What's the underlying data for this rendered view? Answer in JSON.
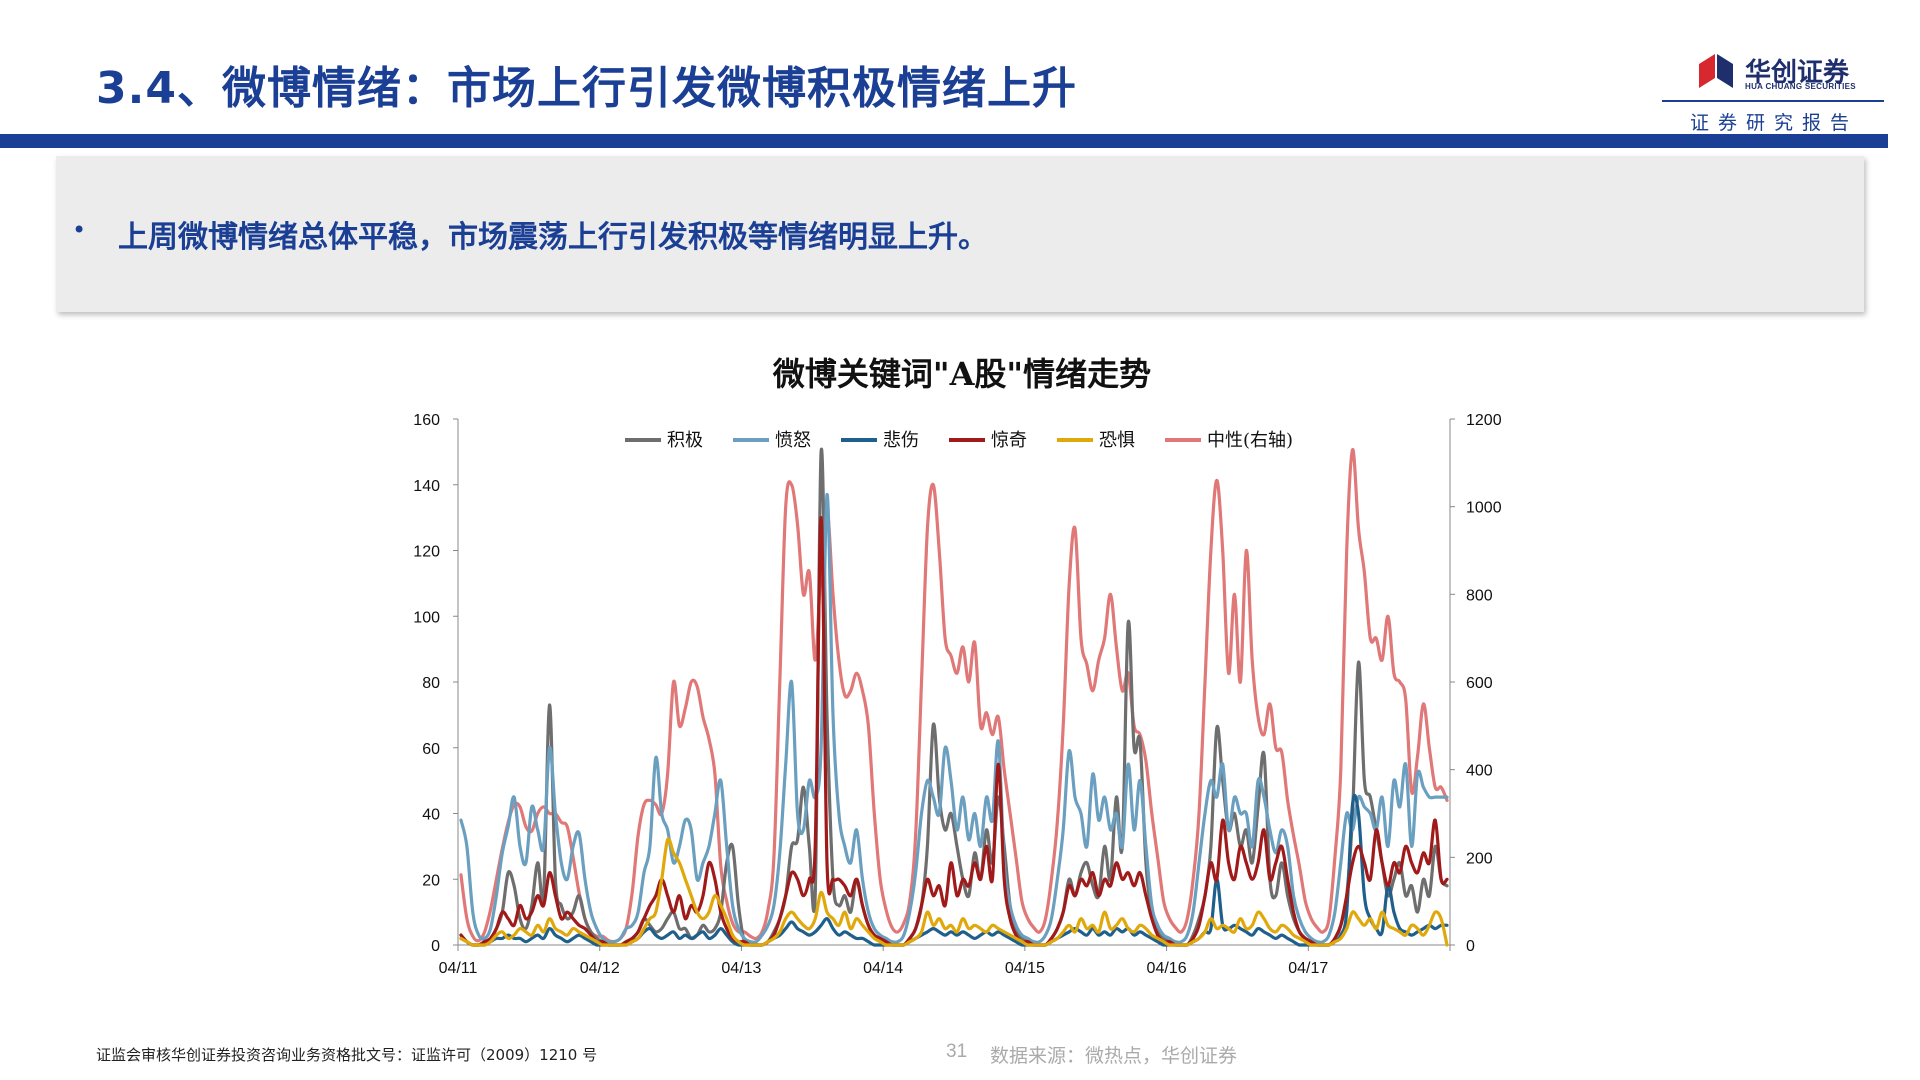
{
  "header": {
    "title": "3.4、微博情绪：市场上行引发微博积极情绪上升",
    "logo_name": "华创证券",
    "logo_sub": "HUA CHUANG SECURITIES",
    "logo_tagline": "证券研究报告"
  },
  "summary": {
    "bullet": "•",
    "text": "上周微博情绪总体平稳，市场震荡上行引发积极等情绪明显上升。"
  },
  "footer": {
    "license": "证监会审核华创证券投资咨询业务资格批文号：证监许可（2009）1210 号",
    "page_number": "31",
    "source": "数据来源：微热点，华创证券"
  },
  "colors": {
    "brand_blue": "#1a3f94",
    "logo_red": "#d6282e",
    "summary_bg": "#ececec"
  },
  "chart_data": {
    "type": "line",
    "title": "微博关键词\"A股\"情绪走势",
    "x_ticks": [
      "04/11",
      "04/12",
      "04/13",
      "04/14",
      "04/15",
      "04/16",
      "04/17"
    ],
    "x_range": [
      "04/11",
      "04/18"
    ],
    "points_per_day": 24,
    "left_ylim": [
      0,
      160
    ],
    "left_ticks": [
      0,
      20,
      40,
      60,
      80,
      100,
      120,
      140,
      160
    ],
    "right_ylim": [
      0,
      1200
    ],
    "right_ticks": [
      0,
      200,
      400,
      600,
      800,
      1000,
      1200
    ],
    "grid": false,
    "legend_position": "top",
    "series": [
      {
        "name": "积极",
        "axis": "left",
        "color": "#6e6e6e",
        "values": [
          3,
          1,
          0,
          0,
          1,
          2,
          5,
          10,
          22,
          18,
          8,
          5,
          12,
          25,
          15,
          73,
          20,
          12,
          8,
          10,
          15,
          8,
          4,
          2,
          1,
          0,
          0,
          0,
          1,
          2,
          4,
          8,
          6,
          4,
          5,
          8,
          10,
          5,
          5,
          2,
          3,
          6,
          4,
          5,
          10,
          25,
          30,
          12,
          1,
          0,
          0,
          0,
          1,
          4,
          8,
          15,
          30,
          32,
          48,
          30,
          15,
          150,
          70,
          20,
          12,
          15,
          10,
          20,
          12,
          6,
          3,
          2,
          1,
          0,
          0,
          0,
          2,
          5,
          12,
          30,
          67,
          45,
          35,
          40,
          30,
          20,
          15,
          28,
          20,
          35,
          25,
          45,
          30,
          12,
          5,
          2,
          1,
          0,
          0,
          0,
          2,
          5,
          10,
          20,
          15,
          22,
          25,
          18,
          15,
          30,
          20,
          45,
          30,
          98,
          60,
          62,
          25,
          10,
          4,
          2,
          1,
          0,
          0,
          0,
          3,
          8,
          15,
          30,
          66,
          50,
          35,
          40,
          30,
          35,
          25,
          42,
          58,
          20,
          15,
          25,
          15,
          8,
          4,
          2,
          1,
          0,
          0,
          0,
          2,
          6,
          15,
          40,
          86,
          50,
          45,
          35,
          25,
          15,
          20,
          25,
          15,
          18,
          10,
          20,
          15,
          30,
          20,
          18
        ]
      },
      {
        "name": "愤怒",
        "axis": "left",
        "color": "#6a9fc0",
        "values": [
          38,
          30,
          10,
          3,
          2,
          5,
          15,
          28,
          36,
          45,
          30,
          25,
          42,
          35,
          30,
          60,
          40,
          25,
          20,
          30,
          34,
          20,
          10,
          5,
          2,
          1,
          1,
          2,
          5,
          6,
          10,
          22,
          30,
          57,
          40,
          35,
          25,
          30,
          38,
          35,
          20,
          25,
          30,
          40,
          50,
          30,
          12,
          5,
          2,
          1,
          1,
          3,
          6,
          12,
          28,
          55,
          80,
          40,
          35,
          50,
          45,
          60,
          137,
          70,
          40,
          30,
          25,
          35,
          20,
          10,
          5,
          3,
          2,
          1,
          1,
          3,
          10,
          22,
          40,
          50,
          45,
          40,
          60,
          50,
          35,
          45,
          32,
          40,
          30,
          45,
          38,
          62,
          25,
          12,
          6,
          3,
          2,
          1,
          1,
          3,
          8,
          20,
          35,
          59,
          45,
          40,
          30,
          52,
          38,
          45,
          35,
          40,
          30,
          55,
          35,
          50,
          30,
          12,
          6,
          3,
          2,
          1,
          1,
          3,
          10,
          25,
          40,
          50,
          45,
          55,
          35,
          45,
          40,
          40,
          30,
          50,
          45,
          35,
          28,
          35,
          30,
          15,
          8,
          4,
          2,
          1,
          1,
          3,
          10,
          25,
          40,
          35,
          45,
          42,
          40,
          35,
          45,
          30,
          50,
          42,
          55,
          30,
          52,
          48,
          45,
          45,
          45,
          45
        ]
      },
      {
        "name": "悲伤",
        "axis": "left",
        "color": "#1f5f8b",
        "values": [
          2,
          1,
          0,
          0,
          0,
          1,
          2,
          2,
          3,
          2,
          2,
          1,
          2,
          3,
          2,
          5,
          3,
          2,
          1,
          2,
          3,
          2,
          1,
          0,
          0,
          0,
          0,
          0,
          0,
          1,
          2,
          4,
          5,
          3,
          2,
          3,
          4,
          2,
          3,
          2,
          3,
          4,
          2,
          3,
          5,
          3,
          1,
          0,
          0,
          0,
          0,
          0,
          1,
          2,
          3,
          5,
          7,
          5,
          4,
          3,
          4,
          6,
          8,
          5,
          3,
          4,
          3,
          2,
          2,
          1,
          0,
          0,
          0,
          0,
          0,
          0,
          1,
          2,
          3,
          4,
          5,
          4,
          3,
          4,
          3,
          4,
          3,
          2,
          3,
          4,
          3,
          4,
          3,
          2,
          1,
          0,
          0,
          0,
          0,
          0,
          1,
          2,
          3,
          4,
          5,
          4,
          3,
          5,
          3,
          4,
          3,
          5,
          4,
          5,
          3,
          4,
          3,
          2,
          1,
          0,
          0,
          0,
          0,
          0,
          1,
          2,
          4,
          5,
          20,
          6,
          5,
          6,
          5,
          4,
          3,
          5,
          4,
          3,
          2,
          3,
          2,
          1,
          0,
          0,
          0,
          0,
          0,
          0,
          1,
          3,
          10,
          43,
          40,
          15,
          8,
          5,
          4,
          18,
          10,
          5,
          4,
          3,
          4,
          5,
          6,
          5,
          6,
          6
        ]
      },
      {
        "name": "惊奇",
        "axis": "left",
        "color": "#a01a1a",
        "values": [
          3,
          1,
          0,
          0,
          1,
          2,
          5,
          10,
          8,
          6,
          12,
          8,
          10,
          15,
          12,
          22,
          15,
          8,
          10,
          8,
          6,
          5,
          3,
          1,
          1,
          0,
          0,
          0,
          1,
          2,
          4,
          8,
          12,
          15,
          20,
          15,
          10,
          15,
          8,
          12,
          10,
          15,
          25,
          20,
          10,
          5,
          2,
          1,
          1,
          0,
          0,
          0,
          1,
          3,
          8,
          15,
          22,
          20,
          15,
          20,
          30,
          130,
          25,
          20,
          20,
          18,
          15,
          20,
          12,
          6,
          3,
          2,
          1,
          0,
          0,
          0,
          2,
          5,
          12,
          20,
          15,
          18,
          12,
          25,
          15,
          20,
          18,
          25,
          20,
          30,
          20,
          55,
          20,
          8,
          3,
          1,
          1,
          0,
          0,
          0,
          2,
          5,
          10,
          18,
          15,
          20,
          18,
          22,
          15,
          20,
          18,
          25,
          20,
          22,
          18,
          22,
          15,
          8,
          3,
          1,
          1,
          0,
          0,
          0,
          2,
          6,
          15,
          25,
          20,
          38,
          25,
          20,
          30,
          25,
          20,
          25,
          35,
          20,
          25,
          30,
          20,
          10,
          4,
          2,
          1,
          0,
          0,
          0,
          2,
          6,
          15,
          25,
          30,
          25,
          20,
          35,
          25,
          18,
          25,
          22,
          30,
          25,
          22,
          28,
          25,
          38,
          20,
          20
        ]
      },
      {
        "name": "恐惧",
        "axis": "left",
        "color": "#e0a80a",
        "values": [
          2,
          1,
          0,
          0,
          0,
          1,
          3,
          4,
          2,
          3,
          5,
          4,
          3,
          6,
          4,
          8,
          5,
          4,
          3,
          5,
          4,
          3,
          2,
          1,
          0,
          0,
          0,
          0,
          0,
          1,
          2,
          5,
          8,
          10,
          20,
          32,
          28,
          25,
          20,
          15,
          10,
          8,
          10,
          15,
          12,
          8,
          3,
          1,
          0,
          0,
          0,
          0,
          1,
          2,
          4,
          8,
          10,
          8,
          6,
          5,
          8,
          16,
          10,
          8,
          6,
          10,
          5,
          8,
          6,
          4,
          2,
          1,
          0,
          0,
          0,
          0,
          1,
          2,
          4,
          10,
          6,
          8,
          5,
          6,
          4,
          8,
          5,
          6,
          5,
          4,
          6,
          5,
          4,
          3,
          2,
          1,
          0,
          0,
          0,
          0,
          1,
          2,
          4,
          6,
          4,
          8,
          5,
          6,
          4,
          10,
          5,
          6,
          8,
          5,
          4,
          6,
          5,
          3,
          2,
          1,
          0,
          0,
          0,
          0,
          1,
          2,
          4,
          8,
          5,
          6,
          5,
          4,
          8,
          5,
          6,
          10,
          8,
          5,
          4,
          6,
          5,
          3,
          2,
          1,
          0,
          0,
          0,
          0,
          1,
          2,
          5,
          10,
          8,
          6,
          8,
          5,
          10,
          6,
          5,
          4,
          3,
          6,
          5,
          3,
          6,
          10,
          8,
          0
        ]
      },
      {
        "name": "中性(右轴)",
        "axis": "right",
        "color": "#e07878",
        "values": [
          160,
          60,
          20,
          10,
          30,
          80,
          150,
          220,
          280,
          320,
          315,
          270,
          260,
          300,
          315,
          300,
          300,
          280,
          270,
          200,
          120,
          60,
          30,
          20,
          20,
          10,
          8,
          15,
          40,
          120,
          250,
          320,
          330,
          320,
          300,
          390,
          600,
          500,
          540,
          600,
          590,
          520,
          470,
          390,
          180,
          100,
          50,
          30,
          30,
          20,
          15,
          30,
          80,
          200,
          600,
          1000,
          1050,
          960,
          800,
          850,
          650,
          870,
          1000,
          800,
          650,
          570,
          580,
          620,
          580,
          500,
          300,
          150,
          80,
          40,
          30,
          50,
          100,
          250,
          600,
          950,
          1050,
          900,
          700,
          660,
          620,
          680,
          600,
          690,
          500,
          530,
          480,
          520,
          400,
          300,
          200,
          100,
          60,
          40,
          30,
          60,
          150,
          280,
          500,
          820,
          950,
          700,
          640,
          580,
          650,
          700,
          800,
          680,
          580,
          620,
          500,
          480,
          420,
          300,
          200,
          100,
          60,
          40,
          30,
          60,
          150,
          300,
          600,
          900,
          1060,
          900,
          620,
          800,
          600,
          900,
          650,
          520,
          480,
          550,
          450,
          440,
          330,
          250,
          180,
          100,
          60,
          40,
          30,
          60,
          200,
          400,
          900,
          1130,
          950,
          850,
          700,
          700,
          650,
          750,
          620,
          600,
          560,
          350,
          430,
          550,
          450,
          360,
          360,
          330
        ]
      }
    ]
  }
}
